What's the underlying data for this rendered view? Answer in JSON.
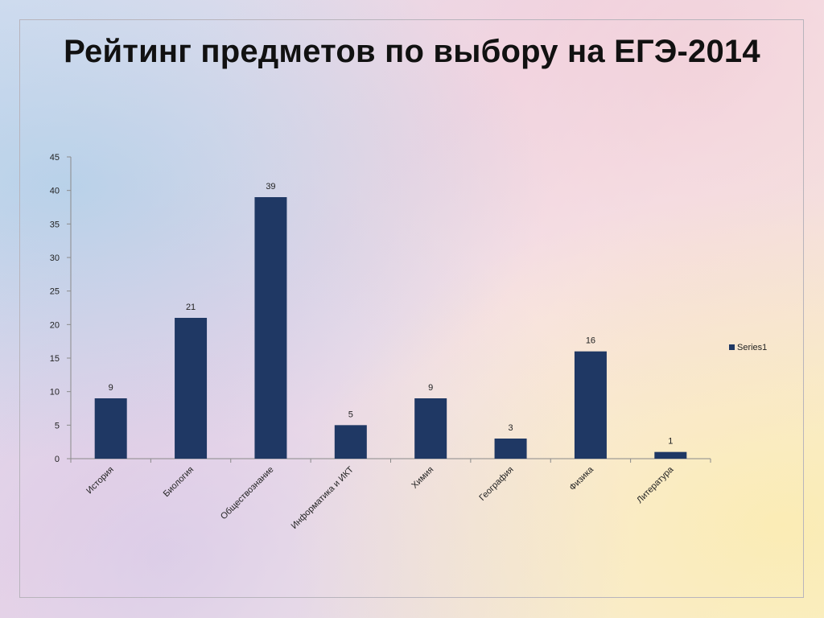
{
  "slide": {
    "title": "Рейтинг предметов по выбору на ЕГЭ-2014"
  },
  "chart_data": {
    "type": "bar",
    "title": "",
    "xlabel": "",
    "ylabel": "",
    "categories": [
      "История",
      "Биология",
      "Обществознание",
      "Информатика и ИКТ",
      "Химия",
      "География",
      "Физика",
      "Литература"
    ],
    "series": [
      {
        "name": "Series1",
        "values": [
          9,
          21,
          39,
          5,
          9,
          3,
          16,
          1
        ],
        "color": "#1f3864"
      }
    ],
    "ylim": [
      0,
      45
    ],
    "yticks": [
      0,
      5,
      10,
      15,
      20,
      25,
      30,
      35,
      40,
      45
    ],
    "grid": false,
    "data_labels": true,
    "legend": {
      "position": "right",
      "entries": [
        "Series1"
      ]
    }
  }
}
